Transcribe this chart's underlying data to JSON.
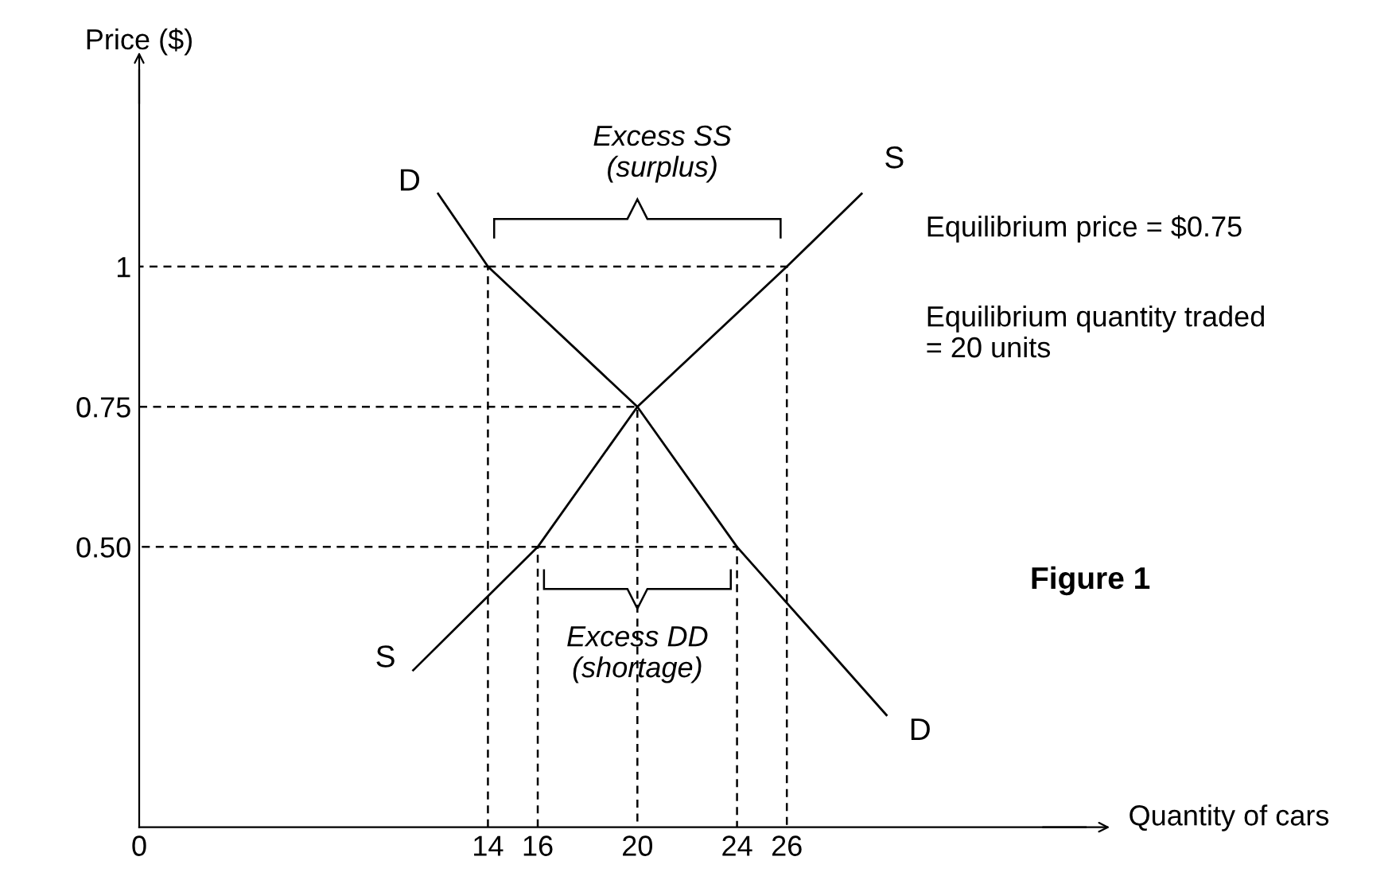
{
  "chart_data": {
    "type": "line",
    "xlabel": "Quantity of cars",
    "ylabel": "Price ($)",
    "xlim": [
      0,
      38
    ],
    "ylim": [
      0,
      1.35
    ],
    "xticks": [
      0,
      14,
      16,
      20,
      24,
      26
    ],
    "yticks": [
      {
        "value": 0.5,
        "label": "0.50"
      },
      0.75,
      1
    ],
    "tick_labels": true,
    "grid": false,
    "legend": false,
    "marker": "none",
    "series": [
      {
        "name": "D",
        "color": "#000000",
        "x": [
          12,
          14,
          20,
          24,
          30
        ],
        "values": [
          1.13,
          1,
          0.75,
          0.5,
          0.2
        ]
      },
      {
        "name": "S",
        "color": "#000000",
        "x": [
          11,
          16,
          20,
          26,
          29
        ],
        "values": [
          0.28,
          0.5,
          0.75,
          1,
          1.13
        ]
      },
      {
        "color": "#000000",
        "line_style": "dashed",
        "x": [
          14,
          14,
          0
        ],
        "values": [
          0,
          1,
          1
        ]
      },
      {
        "color": "#000000",
        "line_style": "dashed",
        "x": [
          14,
          26,
          26
        ],
        "values": [
          1,
          1,
          0
        ]
      },
      {
        "color": "#000000",
        "line_style": "dashed",
        "x": [
          0,
          20,
          20
        ],
        "values": [
          0.75,
          0.75,
          0
        ]
      },
      {
        "color": "#000000",
        "line_style": "dashed",
        "x": [
          16,
          16,
          0
        ],
        "values": [
          0,
          0.5,
          0.5
        ]
      },
      {
        "color": "#000000",
        "line_style": "dashed",
        "x": [
          16,
          24,
          24
        ],
        "values": [
          0.5,
          0.5,
          0
        ]
      }
    ],
    "annotations": [
      {
        "text": "Excess SS\n(surplus)",
        "x": 20,
        "y": 1
      },
      {
        "text": "Excess DD\n(shortage)",
        "x": 20,
        "y": 0.5
      },
      "Equilibrium price = $0.75",
      "Equilibrium quantity traded\n= 20 units",
      "Figure 1"
    ]
  }
}
